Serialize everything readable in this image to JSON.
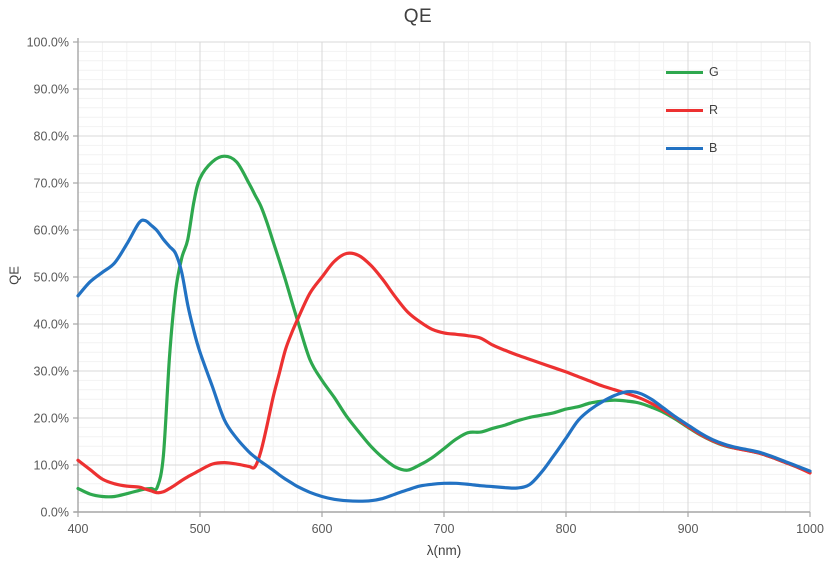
{
  "title": "QE",
  "colors": {
    "G": "#2ea84e",
    "R": "#ed3131",
    "B": "#2272c3",
    "grid_major": "#d9d9d9",
    "grid_minor": "#f2f2f2",
    "axis_line": "#a6a6a6",
    "tick_text": "#595959",
    "title_text": "#404040"
  },
  "legend": {
    "items": [
      {
        "label": "G",
        "color_key": "G"
      },
      {
        "label": "R",
        "color_key": "R"
      },
      {
        "label": "B",
        "color_key": "B"
      }
    ]
  },
  "chart_data": {
    "type": "line",
    "title": "QE",
    "xlabel": "λ(nm)",
    "ylabel": "QE",
    "xlim": [
      400,
      1000
    ],
    "ylim": [
      0,
      100
    ],
    "y_unit": "percent",
    "grid": true,
    "legend_position": "top-right-inside",
    "x_ticks": [
      400,
      500,
      600,
      700,
      800,
      900,
      1000
    ],
    "x_tick_labels": [
      "400",
      "500",
      "600",
      "700",
      "800",
      "900",
      "1000"
    ],
    "y_ticks": [
      0,
      10,
      20,
      30,
      40,
      50,
      60,
      70,
      80,
      90,
      100
    ],
    "y_tick_labels": [
      "0.0%",
      "10.0%",
      "20.0%",
      "30.0%",
      "40.0%",
      "50.0%",
      "60.0%",
      "70.0%",
      "80.0%",
      "90.0%",
      "100.0%"
    ],
    "x_minor_step": 20,
    "y_minor_step": 2,
    "x": [
      400,
      410,
      420,
      430,
      440,
      450,
      455,
      460,
      465,
      470,
      475,
      480,
      485,
      490,
      495,
      500,
      510,
      520,
      530,
      540,
      545,
      550,
      555,
      560,
      565,
      570,
      575,
      580,
      590,
      600,
      610,
      620,
      630,
      640,
      650,
      660,
      670,
      680,
      690,
      700,
      710,
      720,
      730,
      740,
      750,
      760,
      770,
      780,
      790,
      800,
      810,
      820,
      830,
      840,
      850,
      860,
      870,
      880,
      890,
      900,
      910,
      920,
      930,
      940,
      950,
      960,
      970,
      980,
      990,
      1000
    ],
    "series": [
      {
        "name": "G",
        "color_key": "G",
        "values": [
          5.0,
          3.8,
          3.3,
          3.3,
          3.9,
          4.6,
          4.9,
          5.0,
          5.3,
          12,
          33,
          47,
          54,
          58,
          66,
          71,
          74.5,
          75.7,
          74.5,
          70,
          67.5,
          65,
          61.5,
          57.5,
          53.5,
          49.4,
          45,
          40.7,
          32.5,
          28,
          24.4,
          20.4,
          17.1,
          14,
          11.5,
          9.6,
          8.9,
          10,
          11.5,
          13.5,
          15.5,
          16.9,
          17,
          17.8,
          18.5,
          19.4,
          20.1,
          20.6,
          21.1,
          21.9,
          22.4,
          23.2,
          23.6,
          23.8,
          23.6,
          23.2,
          22.3,
          21.2,
          19.7,
          18,
          16.4,
          15.1,
          14.1,
          13.5,
          13,
          12.4,
          11.5,
          10.5,
          9.5,
          8.4
        ]
      },
      {
        "name": "R",
        "color_key": "R",
        "values": [
          11,
          9,
          7,
          6,
          5.5,
          5.3,
          4.9,
          4.5,
          4.1,
          4.3,
          5.0,
          5.8,
          6.7,
          7.5,
          8.2,
          8.9,
          10.2,
          10.5,
          10.2,
          9.7,
          9.6,
          13,
          18.5,
          24.5,
          29.5,
          34.5,
          38,
          41,
          46.5,
          50,
          53.3,
          55,
          54.6,
          52.5,
          49.4,
          45.8,
          42.6,
          40.5,
          38.9,
          38.1,
          37.8,
          37.5,
          37,
          35.5,
          34.4,
          33.4,
          32.5,
          31.6,
          30.7,
          29.8,
          28.8,
          27.8,
          26.8,
          26,
          25.2,
          24.3,
          23.1,
          21.6,
          20,
          18.2,
          16.5,
          15.2,
          14.2,
          13.5,
          13,
          12.4,
          11.5,
          10.5,
          9.5,
          8.3
        ]
      },
      {
        "name": "B",
        "color_key": "B",
        "values": [
          46,
          49,
          51,
          53,
          57,
          61.5,
          62,
          61,
          59.8,
          58,
          56.5,
          55,
          51,
          44,
          38.5,
          34,
          26.8,
          19.6,
          15.7,
          12.8,
          11.7,
          10.7,
          9.8,
          8.9,
          7.9,
          7,
          6.2,
          5.4,
          4.2,
          3.3,
          2.7,
          2.4,
          2.3,
          2.4,
          2.9,
          3.8,
          4.7,
          5.5,
          5.9,
          6.1,
          6.1,
          5.9,
          5.6,
          5.4,
          5.2,
          5.1,
          5.8,
          8.5,
          12,
          15.7,
          19.5,
          21.8,
          23.5,
          24.8,
          25.6,
          25.3,
          24,
          22.1,
          20.2,
          18.5,
          16.8,
          15.4,
          14.4,
          13.7,
          13.2,
          12.6,
          11.7,
          10.7,
          9.7,
          8.7
        ]
      }
    ]
  }
}
